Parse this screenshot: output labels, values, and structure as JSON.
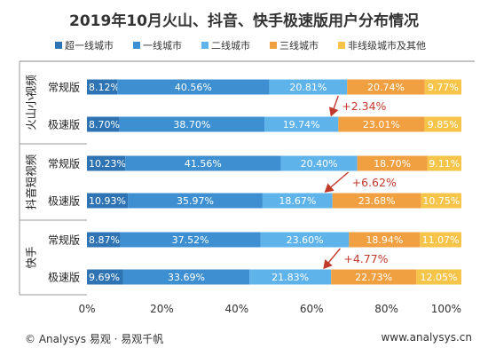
{
  "chart_data": {
    "type": "bar",
    "stacked": true,
    "orientation": "horizontal",
    "title": "2019年10月火山、抖音、快手极速版用户分布情况",
    "legend_position": "top",
    "groups": [
      {
        "name": "火山小视频",
        "rows": [
          "常规版",
          "极速版"
        ]
      },
      {
        "name": "抖音短视频",
        "rows": [
          "常规版",
          "极速版"
        ]
      },
      {
        "name": "快手",
        "rows": [
          "常规版",
          "极速版"
        ]
      }
    ],
    "categories": [
      "火山小视频 常规版",
      "火山小视频 极速版",
      "抖音短视频 常规版",
      "抖音短视频 极速版",
      "快手 常规版",
      "快手 极速版"
    ],
    "series": [
      {
        "name": "超一线城市",
        "color": "#2e74b5",
        "values": [
          8.12,
          8.7,
          10.23,
          10.93,
          8.87,
          9.69
        ],
        "labels": [
          "8.12%",
          "8.70%",
          "10.23%",
          "10.93%",
          "8.87%",
          "9.69%"
        ]
      },
      {
        "name": "一线城市",
        "color": "#3d8fd1",
        "values": [
          40.56,
          38.7,
          41.56,
          35.97,
          37.52,
          33.69
        ],
        "labels": [
          "40.56%",
          "38.70%",
          "41.56%",
          "35.97%",
          "37.52%",
          "33.69%"
        ]
      },
      {
        "name": "二线城市",
        "color": "#5eb3ea",
        "values": [
          20.81,
          19.74,
          20.4,
          18.67,
          23.6,
          21.83
        ],
        "labels": [
          "20.81%",
          "19.74%",
          "20.40%",
          "18.67%",
          "23.60%",
          "21.83%"
        ]
      },
      {
        "name": "三线城市",
        "color": "#f0a040",
        "values": [
          20.74,
          23.01,
          18.7,
          23.68,
          18.94,
          22.73
        ],
        "labels": [
          "20.74%",
          "23.01%",
          "18.70%",
          "23.68%",
          "18.94%",
          "22.73%"
        ]
      },
      {
        "name": "非线级城市及其他",
        "color": "#f7c44a",
        "values": [
          9.77,
          9.85,
          9.11,
          10.75,
          11.07,
          12.05
        ],
        "labels": [
          "9.77%",
          "9.85%",
          "9.11%",
          "10.75%",
          "11.07%",
          "12.05%"
        ]
      }
    ],
    "xlim": [
      0,
      100
    ],
    "xticks": [
      "0%",
      "20%",
      "40%",
      "60%",
      "80%",
      "100%"
    ],
    "annotations": [
      {
        "group": "火山小视频",
        "text": "+2.34%"
      },
      {
        "group": "抖音短视频",
        "text": "+6.62%"
      },
      {
        "group": "快手",
        "text": "+4.77%"
      }
    ],
    "annotation_color": "#c0392b"
  },
  "footer": {
    "source": "© Analysys 易观 · 易观千帆",
    "url": "www.analysys.cn"
  }
}
